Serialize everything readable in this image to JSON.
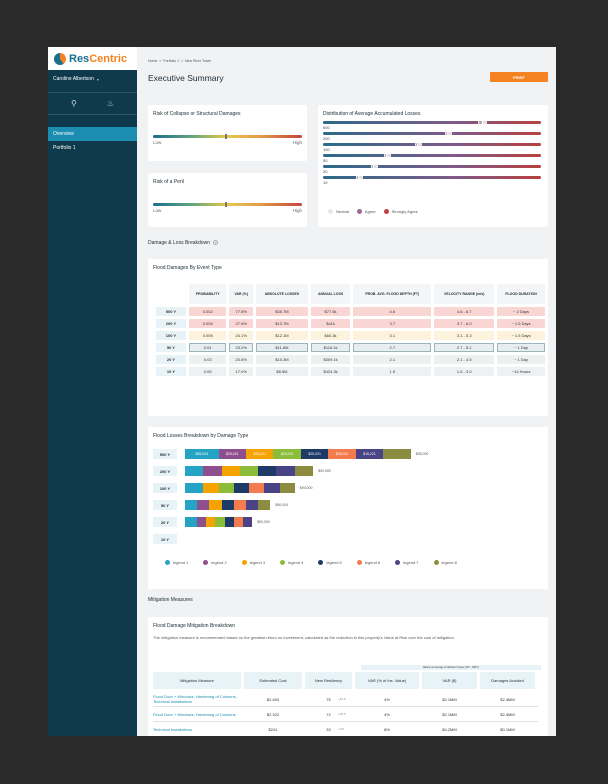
{
  "app": {
    "logo_res": "Res",
    "logo_centric": "Centric",
    "user_name": "Caroline Albertson"
  },
  "sidebar": {
    "items": [
      {
        "label": "Overview",
        "active": true
      },
      {
        "label": "Portfolio 1",
        "active": false
      }
    ]
  },
  "header": {
    "breadcrumb": [
      "Home",
      "Portfolio 1",
      "New River Tower"
    ],
    "title": "Executive Summary",
    "print_label": "PRINT"
  },
  "risk_collapse": {
    "title": "Risk of Collapse or Structural Damages",
    "low": "Low",
    "high": "High",
    "level": 0.48
  },
  "risk_peril": {
    "title": "Risk of a Peril",
    "low": "Low",
    "high": "High",
    "level": 0.48
  },
  "distribution": {
    "title": "Distribution of Average Accumulated Losses",
    "rows": [
      {
        "label": "500",
        "neutral": 0.73,
        "agree": 0.71
      },
      {
        "label": "200",
        "neutral": 0.57,
        "agree": 0.56
      },
      {
        "label": "100",
        "neutral": 0.43,
        "agree": 0.42
      },
      {
        "label": "50",
        "neutral": 0.29,
        "agree": 0.28
      },
      {
        "label": "20",
        "neutral": 0.23,
        "agree": 0.22
      },
      {
        "label": "10",
        "neutral": 0.16,
        "agree": 0.15
      }
    ],
    "legend": [
      {
        "label": "Neutral",
        "color": "#e6e6e6"
      },
      {
        "label": "Agree",
        "color": "#9a6a8f"
      },
      {
        "label": "Strongly Agree",
        "color": "#c0403e"
      }
    ]
  },
  "damage_section": {
    "title": "Damage & Loss Breakdown"
  },
  "flood_damages": {
    "title": "Flood Damages By Event Type",
    "headers": [
      "PROBABILITY",
      "VAR (%)",
      "ABSOLUTE LOSSES",
      "ANNUAL LOSS",
      "PROB. AVG. FLOOD DEPTH (FT)",
      "VELOCITY RANGE (m/s)",
      "FLOOD DURATION"
    ],
    "rows": [
      {
        "rp": "500 Y",
        "cells": [
          "0.002",
          "77.5%",
          "$35.7M",
          "$77.5k",
          "4.6",
          "4.6 - 6.7",
          "~ 2 Days"
        ],
        "tone": "red"
      },
      {
        "rp": "200 Y",
        "cells": [
          "0.005",
          "27.5%",
          "$13.7M",
          "$41k",
          "3.7",
          "3.7 - 6.0",
          "~ 1.5 Days"
        ],
        "tone": "red"
      },
      {
        "rp": "100 Y",
        "cells": [
          "0.005",
          "24.1%",
          "$12.1M",
          "$60.3k",
          "3.1",
          "3.1 - 5.3",
          "~ 1.5 Days"
        ],
        "tone": "yel"
      },
      {
        "rp": "50 Y",
        "cells": [
          "0.01",
          "23.2%",
          "$11.6M",
          "$116.1k",
          "2.7",
          "2.7 - 5.1",
          "~ 1 Day"
        ],
        "tone": "blue"
      },
      {
        "rp": "20 Y",
        "cells": [
          "0.03",
          "20.6%",
          "$10.3M",
          "$309.1k",
          "2.1",
          "2.1 - 4.5",
          "~ 1 Day"
        ],
        "tone": "grey"
      },
      {
        "rp": "10 Y",
        "cells": [
          "0.05",
          "17.0%",
          "$8.5M",
          "$424.3k",
          "1.5",
          "1.5 - 3.0",
          "~14 Hours"
        ],
        "tone": "grey"
      }
    ]
  },
  "chart_data": {
    "type": "bar",
    "title": "Flood Losses Breakdown by Damage Type",
    "categories": [
      "500 Y",
      "200 Y",
      "100 Y",
      "50 Y",
      "20 Y",
      "10 Y"
    ],
    "totals": [
      "$95,000",
      "$90,000",
      "$90,000",
      "$90,000",
      "$90,000",
      ""
    ],
    "segment_labels_500": [
      "$35,024",
      "$25,021",
      "$25,021",
      "$25,021",
      "$25,021",
      "$25,021",
      "$15,221",
      ""
    ],
    "series": [
      {
        "name": "legend 1",
        "color": "#25a3c5",
        "values": [
          11,
          6,
          6,
          4,
          4,
          0
        ]
      },
      {
        "name": "legend 2",
        "color": "#8e4f8e",
        "values": [
          9,
          6,
          0,
          4,
          3,
          0
        ]
      },
      {
        "name": "legend 3",
        "color": "#f5a300",
        "values": [
          9,
          6,
          5,
          4,
          3,
          0
        ]
      },
      {
        "name": "legend 4",
        "color": "#8bbd3b",
        "values": [
          9,
          6,
          5,
          0,
          3,
          0
        ]
      },
      {
        "name": "legend 5",
        "color": "#1e3a66",
        "values": [
          9,
          6,
          5,
          4,
          3,
          0
        ]
      },
      {
        "name": "legend 6",
        "color": "#f47b4d",
        "values": [
          9,
          0,
          5,
          4,
          3,
          0
        ]
      },
      {
        "name": "legend 7",
        "color": "#4a4486",
        "values": [
          9,
          6,
          5,
          4,
          3,
          0
        ]
      },
      {
        "name": "legend 8",
        "color": "#8b8c3f",
        "values": [
          9,
          6,
          5,
          4,
          0,
          0
        ]
      }
    ]
  },
  "mitigation": {
    "section_title": "Mitigation Measures",
    "card_title": "Flood Damage Mitigation Breakdown",
    "description": "The mitigation measure is recommended based on the greatest return on investment, calculated as the reduction in this property's Value at Risk over the cost of mitigation.",
    "group_label": "Based on Average of all Event Types (10Y - 500Y)",
    "headers": [
      "Mitigation Measure",
      "Estimated Cost",
      "New Resiliency",
      "VAR (% of Ins. Value)",
      "VAR ($)",
      "Damages Avoided"
    ],
    "rows": [
      {
        "measure": "Flood Door + Windows, Hardening of Columns, Technical Installations",
        "cost": "$2,463",
        "res": "75",
        "delta": "+42.5",
        "var_pct": "4%",
        "var_usd": "$2.1MM",
        "avoided": "$2.3MM"
      },
      {
        "measure": "Flood Door + Windows, Hardening of Columns",
        "cost": "$2,322",
        "res": "72",
        "delta": "+39.5",
        "var_pct": "4%",
        "var_usd": "$2.1MM",
        "avoided": "$2.4MM"
      },
      {
        "measure": "Technical Installations",
        "cost": "$241",
        "res": "33",
        "delta": "+0.5",
        "var_pct": "8%",
        "var_usd": "$4.2MM",
        "avoided": "$0.1MM"
      }
    ]
  }
}
